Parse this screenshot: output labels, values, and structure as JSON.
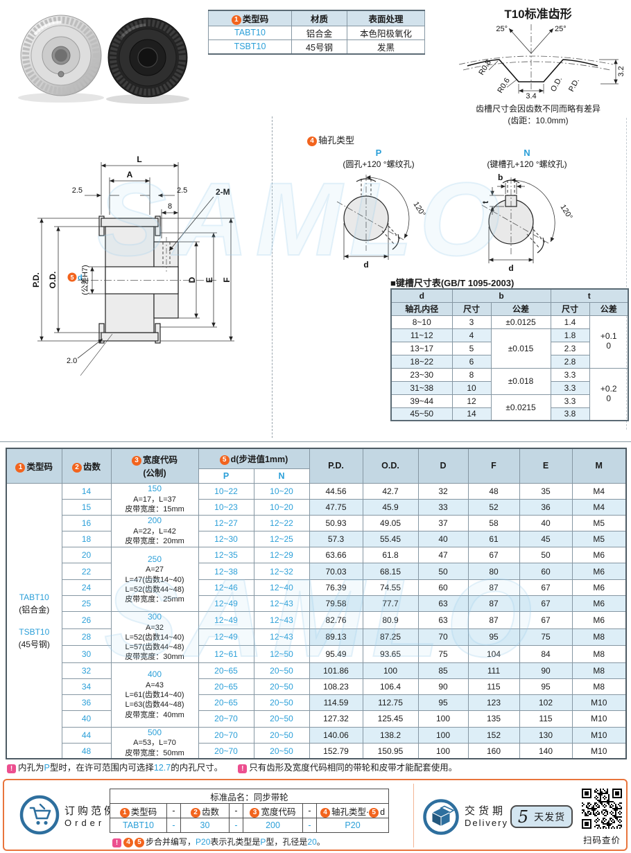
{
  "watermark": "SAMLO",
  "colors": {
    "accent_blue": "#2b9fd8",
    "header_bg": "#c3d7e3",
    "stripe_bg": "#ddeef7",
    "circle_orange": "#f2641e",
    "note_pink": "#ec4f8f",
    "box_border": "#e8743c",
    "badge_bg": "#d3e5f0"
  },
  "material_table": {
    "header": {
      "c1_num": "1",
      "c1": "类型码",
      "c2": "材质",
      "c3": "表面处理"
    },
    "rows": [
      {
        "code": "TABT10",
        "material": "铝合金",
        "finish": "本色阳极氧化"
      },
      {
        "code": "TSBT10",
        "material": "45号钢",
        "finish": "发黑"
      }
    ]
  },
  "tooth_profile": {
    "title": "T10标准齿形",
    "angle_left": "25°",
    "angle_right": "25°",
    "r_top": "R0.8",
    "r_bottom": "R0.6",
    "width": "3.4",
    "od": "O.D.",
    "pd": "P.D.",
    "depth": "3.2",
    "caption1": "齿槽尺寸会因齿数不同而略有差异",
    "caption2": "(齿距：10.0mm)"
  },
  "drawing": {
    "L": "L",
    "A": "A",
    "left_25": "2.5",
    "right_25": "2.5",
    "eight": "8",
    "tap": "2-M",
    "pd": "P.D.",
    "od": "O.D.",
    "d_num": "5",
    "d": "d",
    "d_tol": "(公差H7)",
    "D": "D",
    "E": "E",
    "F": "F",
    "flange_t": "2.0"
  },
  "shaft_hole": {
    "num": "4",
    "title": "轴孔类型",
    "p": {
      "label": "P",
      "desc": "(圆孔+120 °螺纹孔)",
      "d": "d",
      "angle": "120°"
    },
    "n": {
      "label": "N",
      "desc": "(键槽孔+120 °螺纹孔)",
      "d": "d",
      "b": "b",
      "t": "t",
      "angle": "120°"
    }
  },
  "keyway": {
    "title": "■键槽尺寸表(GB/T 1095-2003)",
    "h_d": "d",
    "h_d_sub": "轴孔内径",
    "h_b": "b",
    "h_t": "t",
    "h_size": "尺寸",
    "h_tol": "公差",
    "rows": [
      {
        "d": "8~10",
        "b": "3",
        "t": "1.4"
      },
      {
        "d": "11~12",
        "b": "4",
        "t": "1.8"
      },
      {
        "d": "13~17",
        "b": "5",
        "t": "2.3"
      },
      {
        "d": "18~22",
        "b": "6",
        "t": "2.8"
      },
      {
        "d": "23~30",
        "b": "8",
        "t": "3.3"
      },
      {
        "d": "31~38",
        "b": "10",
        "t": "3.3"
      },
      {
        "d": "39~44",
        "b": "12",
        "t": "3.3"
      },
      {
        "d": "45~50",
        "b": "14",
        "t": "3.8"
      }
    ],
    "b_tols": [
      {
        "start": 0,
        "span": 1,
        "text": "±0.0125"
      },
      {
        "start": 1,
        "span": 3,
        "text": "±0.015"
      },
      {
        "start": 4,
        "span": 2,
        "text": "±0.018"
      },
      {
        "start": 6,
        "span": 2,
        "text": "±0.0215"
      }
    ],
    "t_tols": [
      {
        "start": 0,
        "span": 4,
        "line1": "+0.1",
        "line2": "0"
      },
      {
        "start": 4,
        "span": 4,
        "line1": "+0.2",
        "line2": "0"
      }
    ]
  },
  "main_table": {
    "header": {
      "type_num": "1",
      "type_label": "类型码",
      "teeth_num": "2",
      "teeth_label": "齿数",
      "width_num": "3",
      "width_label": "宽度代码",
      "width_sub": "(公制)",
      "d_num": "5",
      "d_label": "d(步进值1mm)",
      "p": "P",
      "n": "N",
      "pd": "P.D.",
      "od": "O.D.",
      "D": "D",
      "F": "F",
      "E": "E",
      "M": "M"
    },
    "type_code_cell": [
      "TABT10",
      "(铝合金)",
      "TSBT10",
      "(45号钢)"
    ],
    "width_groups": [
      {
        "start": 0,
        "span": 2,
        "code": "150",
        "lines": [
          "A=17，L=37",
          "皮带宽度：15mm"
        ]
      },
      {
        "start": 2,
        "span": 2,
        "code": "200",
        "lines": [
          "A=22，L=42",
          "皮带宽度：20mm"
        ]
      },
      {
        "start": 4,
        "span": 4,
        "code": "250",
        "lines": [
          "A=27",
          "L=47(齿数14~40)",
          "L=52(齿数44~48)",
          "皮带宽度：25mm"
        ]
      },
      {
        "start": 8,
        "span": 3,
        "code": "300",
        "lines": [
          "A=32",
          "L=52(齿数14~40)",
          "L=57(齿数44~48)",
          "皮带宽度：30mm"
        ]
      },
      {
        "start": 11,
        "span": 4,
        "code": "400",
        "lines": [
          "A=43",
          "L=61(齿数14~40)",
          "L=63(齿数44~48)",
          "皮带宽度：40mm"
        ]
      },
      {
        "start": 15,
        "span": 2,
        "code": "500",
        "lines": [
          "A=53，L=70",
          "皮带宽度：50mm"
        ]
      }
    ],
    "rows": [
      {
        "teeth": "14",
        "p": "10~22",
        "n": "10~20",
        "pd": "44.56",
        "od": "42.7",
        "D": "32",
        "F": "48",
        "E": "35",
        "M": "M4"
      },
      {
        "teeth": "15",
        "p": "10~23",
        "n": "10~20",
        "pd": "47.75",
        "od": "45.9",
        "D": "33",
        "F": "52",
        "E": "36",
        "M": "M4"
      },
      {
        "teeth": "16",
        "p": "12~27",
        "n": "12~22",
        "pd": "50.93",
        "od": "49.05",
        "D": "37",
        "F": "58",
        "E": "40",
        "M": "M5"
      },
      {
        "teeth": "18",
        "p": "12~30",
        "n": "12~25",
        "pd": "57.3",
        "od": "55.45",
        "D": "40",
        "F": "61",
        "E": "45",
        "M": "M5"
      },
      {
        "teeth": "20",
        "p": "12~35",
        "n": "12~29",
        "pd": "63.66",
        "od": "61.8",
        "D": "47",
        "F": "67",
        "E": "50",
        "M": "M6"
      },
      {
        "teeth": "22",
        "p": "12~38",
        "n": "12~32",
        "pd": "70.03",
        "od": "68.15",
        "D": "50",
        "F": "80",
        "E": "60",
        "M": "M6"
      },
      {
        "teeth": "24",
        "p": "12~46",
        "n": "12~40",
        "pd": "76.39",
        "od": "74.55",
        "D": "60",
        "F": "87",
        "E": "67",
        "M": "M6"
      },
      {
        "teeth": "25",
        "p": "12~49",
        "n": "12~43",
        "pd": "79.58",
        "od": "77.7",
        "D": "63",
        "F": "87",
        "E": "67",
        "M": "M6"
      },
      {
        "teeth": "26",
        "p": "12~49",
        "n": "12~43",
        "pd": "82.76",
        "od": "80.9",
        "D": "63",
        "F": "87",
        "E": "67",
        "M": "M6"
      },
      {
        "teeth": "28",
        "p": "12~49",
        "n": "12~43",
        "pd": "89.13",
        "od": "87.25",
        "D": "70",
        "F": "95",
        "E": "75",
        "M": "M8"
      },
      {
        "teeth": "30",
        "p": "12~61",
        "n": "12~50",
        "pd": "95.49",
        "od": "93.65",
        "D": "75",
        "F": "104",
        "E": "84",
        "M": "M8"
      },
      {
        "teeth": "32",
        "p": "20~65",
        "n": "20~50",
        "pd": "101.86",
        "od": "100",
        "D": "85",
        "F": "111",
        "E": "90",
        "M": "M8"
      },
      {
        "teeth": "34",
        "p": "20~65",
        "n": "20~50",
        "pd": "108.23",
        "od": "106.4",
        "D": "90",
        "F": "115",
        "E": "95",
        "M": "M8"
      },
      {
        "teeth": "36",
        "p": "20~65",
        "n": "20~50",
        "pd": "114.59",
        "od": "112.75",
        "D": "95",
        "F": "123",
        "E": "102",
        "M": "M10"
      },
      {
        "teeth": "40",
        "p": "20~70",
        "n": "20~50",
        "pd": "127.32",
        "od": "125.45",
        "D": "100",
        "F": "135",
        "E": "115",
        "M": "M10"
      },
      {
        "teeth": "44",
        "p": "20~70",
        "n": "20~50",
        "pd": "140.06",
        "od": "138.2",
        "D": "100",
        "F": "152",
        "E": "130",
        "M": "M10"
      },
      {
        "teeth": "48",
        "p": "20~70",
        "n": "20~50",
        "pd": "152.79",
        "od": "150.95",
        "D": "100",
        "F": "160",
        "E": "140",
        "M": "M10"
      }
    ]
  },
  "notes": {
    "n1_pre": "内孔为",
    "n1_b1": "P",
    "n1_mid": "型时，在许可范围内可选择",
    "n1_b2": "12.7",
    "n1_end": "的内孔尺寸。",
    "n2": "只有齿形及宽度代码相同的带轮和皮带才能配套使用。"
  },
  "order": {
    "title": "订购范例",
    "title_en": "Order",
    "std_name": "标准品名：同步带轮",
    "header": [
      {
        "num": "1",
        "label": "类型码"
      },
      {
        "dash": "-"
      },
      {
        "num": "2",
        "label": "齿数"
      },
      {
        "dash": "-"
      },
      {
        "num": "3",
        "label": "宽度代码"
      },
      {
        "dash": "-"
      },
      {
        "num": "4",
        "label": "轴孔类型",
        "sep": "·",
        "num2": "5",
        "label2": "d"
      }
    ],
    "values": [
      "TABT10",
      "-",
      "30",
      "-",
      "200",
      "-",
      "P20"
    ],
    "note": {
      "num1": "4",
      "num2": "5",
      "t1": "步合并编写，",
      "b1": "P20",
      "t2": "表示孔类型是",
      "b2": "P",
      "t3": "型，孔径是",
      "b3": "20",
      "t4": "。"
    }
  },
  "delivery": {
    "title": "交货期",
    "title_en": "Delivery",
    "days": "5",
    "unit": "天发货",
    "qr_caption": "扫码查价"
  }
}
